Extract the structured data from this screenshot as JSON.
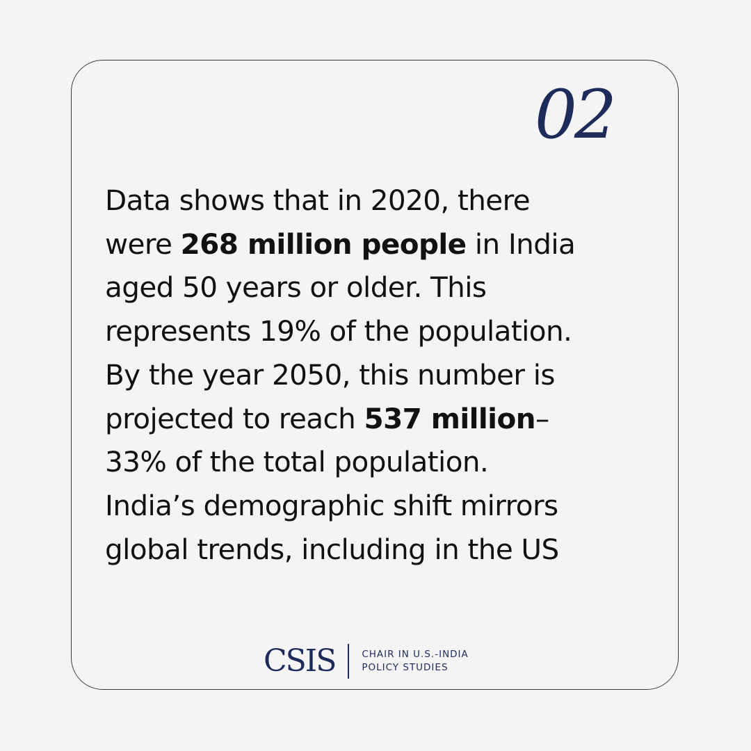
{
  "slide": {
    "number": "02"
  },
  "content": {
    "lines": [
      {
        "parts": [
          {
            "text": "Data shows that in 2020, there",
            "bold": false
          }
        ]
      },
      {
        "parts": [
          {
            "text": "were ",
            "bold": false
          },
          {
            "text": "268 million people",
            "bold": true
          },
          {
            "text": " in India",
            "bold": false
          }
        ]
      },
      {
        "parts": [
          {
            "text": "aged 50 years or older. This",
            "bold": false
          }
        ]
      },
      {
        "parts": [
          {
            "text": "represents 19% of the population.",
            "bold": false
          }
        ]
      },
      {
        "parts": [
          {
            "text": "By the year 2050, this number is",
            "bold": false
          }
        ]
      },
      {
        "parts": [
          {
            "text": "projected to reach ",
            "bold": false
          },
          {
            "text": "537 million",
            "bold": true
          },
          {
            "text": "–",
            "bold": false
          }
        ]
      },
      {
        "parts": [
          {
            "text": "33% of the total population.",
            "bold": false
          }
        ]
      },
      {
        "parts": [
          {
            "text": "India’s demographic shift mirrors",
            "bold": false
          }
        ]
      },
      {
        "parts": [
          {
            "text": "global trends, including in the US",
            "bold": false
          }
        ]
      }
    ]
  },
  "footer": {
    "logo_text": "CSIS",
    "subtitle_line1": "CHAIR IN U.S.-INDIA",
    "subtitle_line2": "POLICY STUDIES"
  },
  "colors": {
    "background": "#f4f4f4",
    "accent_navy": "#1c2b5a",
    "text": "#111111",
    "card_border": "#3a3a3a"
  }
}
